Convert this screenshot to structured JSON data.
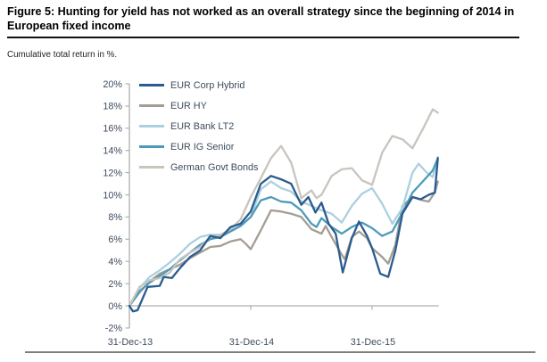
{
  "figure": {
    "title": "Figure 5: Hunting for yield has not worked as an overall strategy since the beginning of 2014 in European fixed income",
    "subtitle": "Cumulative total return in %."
  },
  "chart_data": {
    "type": "line",
    "title": "Figure 5: Hunting for yield has not worked as an overall strategy since the beginning of 2014 in European fixed income",
    "subtitle": "Cumulative total return in %.",
    "y_unit": "%",
    "ylim": [
      -2,
      20
    ],
    "y_tick_values": [
      20,
      18,
      16,
      14,
      12,
      10,
      8,
      6,
      4,
      2,
      0,
      -2
    ],
    "x_ticks": [
      {
        "label": "31-Dec-13",
        "month": 0
      },
      {
        "label": "31-Dec-14",
        "month": 12
      },
      {
        "label": "31-Dec-15",
        "month": 24
      }
    ],
    "x_range_months": [
      0,
      30.5
    ],
    "grid": false,
    "legend_position": "top-left",
    "draw_order": [
      1,
      2,
      3,
      4,
      0
    ],
    "axis_color": "#b0afad",
    "label_color": "#3e4c5e",
    "series": [
      {
        "name": "EUR Corp Hybrid",
        "color": "#2b5c8d",
        "points": [
          [
            0,
            0
          ],
          [
            0.35,
            -0.5
          ],
          [
            0.8,
            -0.4
          ],
          [
            1.8,
            1.7
          ],
          [
            3,
            1.8
          ],
          [
            3.4,
            2.6
          ],
          [
            4.2,
            2.5
          ],
          [
            5,
            3.4
          ],
          [
            6,
            4.4
          ],
          [
            7,
            5.0
          ],
          [
            8,
            6.3
          ],
          [
            9,
            6.1
          ],
          [
            10,
            7.1
          ],
          [
            11,
            7.4
          ],
          [
            12,
            8.5
          ],
          [
            13,
            11.0
          ],
          [
            14,
            11.7
          ],
          [
            15,
            11.4
          ],
          [
            16,
            11.0
          ],
          [
            17,
            9.1
          ],
          [
            17.7,
            9.8
          ],
          [
            18.4,
            8.4
          ],
          [
            19,
            9.3
          ],
          [
            19.7,
            7.4
          ],
          [
            20.4,
            6.5
          ],
          [
            21.1,
            3.0
          ],
          [
            22,
            6.1
          ],
          [
            22.7,
            7.6
          ],
          [
            23.5,
            6.3
          ],
          [
            24,
            5.2
          ],
          [
            24.8,
            2.9
          ],
          [
            25.6,
            2.6
          ],
          [
            26.3,
            5.0
          ],
          [
            27,
            8.3
          ],
          [
            28,
            9.8
          ],
          [
            28.8,
            9.6
          ],
          [
            29.6,
            10.0
          ],
          [
            30.2,
            10.2
          ],
          [
            30.5,
            13.3
          ]
        ]
      },
      {
        "name": "EUR HY",
        "color": "#a39d94",
        "points": [
          [
            0,
            0
          ],
          [
            1,
            1.2
          ],
          [
            2,
            2.2
          ],
          [
            3,
            2.9
          ],
          [
            4,
            3.3
          ],
          [
            5,
            3.7
          ],
          [
            6,
            4.3
          ],
          [
            7,
            4.8
          ],
          [
            8,
            5.3
          ],
          [
            9,
            5.4
          ],
          [
            10,
            5.8
          ],
          [
            11,
            6.0
          ],
          [
            11.5,
            5.6
          ],
          [
            12,
            5.1
          ],
          [
            13,
            6.8
          ],
          [
            14,
            8.6
          ],
          [
            15,
            8.5
          ],
          [
            16,
            8.3
          ],
          [
            17,
            8.0
          ],
          [
            18,
            6.9
          ],
          [
            19,
            6.5
          ],
          [
            19.4,
            7.2
          ],
          [
            20,
            6.2
          ],
          [
            21,
            4.6
          ],
          [
            21.3,
            4.2
          ],
          [
            22,
            6.2
          ],
          [
            22.7,
            6.7
          ],
          [
            23.5,
            6.1
          ],
          [
            24,
            5.2
          ],
          [
            25,
            4.4
          ],
          [
            25.6,
            3.8
          ],
          [
            26.3,
            5.5
          ],
          [
            27,
            9.0
          ],
          [
            28,
            9.8
          ],
          [
            29,
            9.5
          ],
          [
            29.6,
            9.4
          ],
          [
            30.2,
            10.2
          ],
          [
            30.5,
            11.2
          ]
        ]
      },
      {
        "name": "EUR Bank LT2",
        "color": "#abd0e0",
        "points": [
          [
            0,
            0
          ],
          [
            1,
            1.6
          ],
          [
            2,
            2.6
          ],
          [
            3,
            3.2
          ],
          [
            4,
            3.9
          ],
          [
            5,
            4.7
          ],
          [
            6,
            5.6
          ],
          [
            7,
            6.2
          ],
          [
            8,
            6.4
          ],
          [
            9,
            6.4
          ],
          [
            10,
            6.8
          ],
          [
            11,
            7.2
          ],
          [
            12,
            8.0
          ],
          [
            13,
            10.5
          ],
          [
            14,
            11.2
          ],
          [
            15,
            10.6
          ],
          [
            16,
            10.3
          ],
          [
            17,
            9.4
          ],
          [
            18,
            9.0
          ],
          [
            19,
            8.6
          ],
          [
            20,
            8.3
          ],
          [
            21,
            7.5
          ],
          [
            22,
            9.0
          ],
          [
            23,
            10.1
          ],
          [
            24,
            10.6
          ],
          [
            25,
            9.2
          ],
          [
            26,
            7.4
          ],
          [
            27,
            8.8
          ],
          [
            28,
            12.0
          ],
          [
            28.6,
            12.8
          ],
          [
            29.4,
            12.0
          ],
          [
            30,
            11.6
          ],
          [
            30.5,
            13.4
          ]
        ]
      },
      {
        "name": "EUR IG Senior",
        "color": "#4e9ab8",
        "points": [
          [
            0,
            0
          ],
          [
            1,
            1.3
          ],
          [
            2,
            2.1
          ],
          [
            3,
            2.7
          ],
          [
            4,
            3.3
          ],
          [
            5,
            4.1
          ],
          [
            6,
            4.8
          ],
          [
            7,
            5.5
          ],
          [
            8,
            6.0
          ],
          [
            9,
            6.2
          ],
          [
            10,
            6.7
          ],
          [
            11,
            7.2
          ],
          [
            12,
            8.0
          ],
          [
            13,
            9.5
          ],
          [
            14,
            9.8
          ],
          [
            15,
            9.4
          ],
          [
            16,
            9.3
          ],
          [
            17,
            8.6
          ],
          [
            18,
            7.4
          ],
          [
            18.5,
            7.1
          ],
          [
            19,
            7.9
          ],
          [
            20,
            7.1
          ],
          [
            21,
            6.5
          ],
          [
            22,
            7.1
          ],
          [
            23,
            7.5
          ],
          [
            24,
            7.0
          ],
          [
            25,
            6.3
          ],
          [
            26,
            6.7
          ],
          [
            27,
            8.4
          ],
          [
            28,
            10.2
          ],
          [
            29,
            11.2
          ],
          [
            30,
            12.2
          ],
          [
            30.5,
            13.3
          ]
        ]
      },
      {
        "name": "German Govt Bonds",
        "color": "#c8c4be",
        "points": [
          [
            0,
            0
          ],
          [
            1,
            1.7
          ],
          [
            2,
            2.3
          ],
          [
            3,
            2.5
          ],
          [
            4,
            3.0
          ],
          [
            5,
            4.2
          ],
          [
            6,
            4.8
          ],
          [
            7,
            5.3
          ],
          [
            8,
            6.2
          ],
          [
            9,
            6.4
          ],
          [
            10,
            6.9
          ],
          [
            11,
            7.8
          ],
          [
            12,
            9.8
          ],
          [
            13,
            11.5
          ],
          [
            14,
            13.3
          ],
          [
            15,
            14.4
          ],
          [
            16,
            12.9
          ],
          [
            17,
            9.7
          ],
          [
            18,
            10.4
          ],
          [
            18.5,
            9.7
          ],
          [
            19,
            10.0
          ],
          [
            20,
            11.7
          ],
          [
            21,
            12.3
          ],
          [
            22,
            12.4
          ],
          [
            23,
            11.3
          ],
          [
            24,
            10.9
          ],
          [
            25,
            13.8
          ],
          [
            26,
            15.3
          ],
          [
            27,
            15.0
          ],
          [
            28,
            14.2
          ],
          [
            29,
            15.9
          ],
          [
            30,
            17.7
          ],
          [
            30.5,
            17.4
          ]
        ]
      }
    ]
  }
}
